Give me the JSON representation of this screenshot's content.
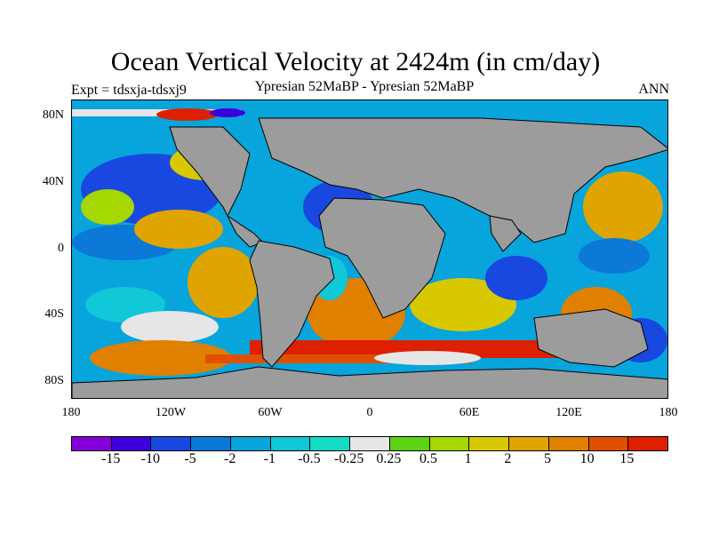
{
  "title": "Ocean Vertical Velocity at 2424m (in cm/day)",
  "subtitle_left": "Expt = tdsxja-tdsxj9",
  "subtitle_center": "Ypresian  52MaBP - Ypresian  52MaBP",
  "subtitle_right": "ANN",
  "map": {
    "land_color": "#9c9c9c",
    "lat_ticks": [
      "80N",
      "40N",
      "0",
      "40S",
      "80S"
    ],
    "lon_ticks": [
      "180",
      "120W",
      "60W",
      "0",
      "60E",
      "120E",
      "180"
    ]
  },
  "colorbar": {
    "colors": [
      "#8400d8",
      "#3c00dc",
      "#1848e0",
      "#0c78d8",
      "#08a4dc",
      "#10c8d8",
      "#14dcc4",
      "#e6e6e6",
      "#5cd214",
      "#a4d800",
      "#d8c800",
      "#e0a400",
      "#e08000",
      "#e05000",
      "#dc2000"
    ],
    "labels": [
      "-15",
      "-10",
      "-5",
      "-2",
      "-1",
      "-0.5",
      "-0.25",
      "0.25",
      "0.5",
      "1",
      "2",
      "5",
      "10",
      "15"
    ]
  }
}
